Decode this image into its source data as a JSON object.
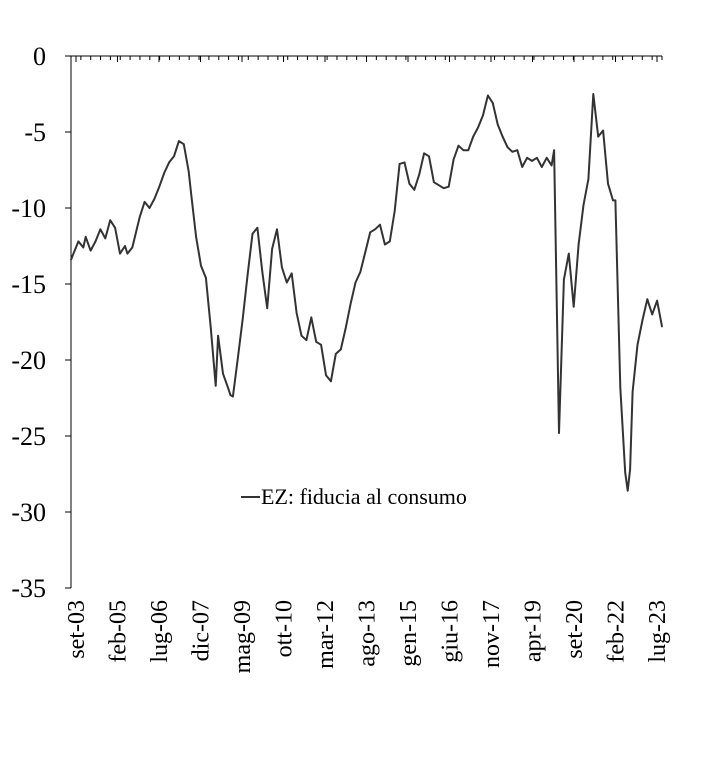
{
  "chart_data": {
    "type": "line",
    "title": "",
    "xlabel": "",
    "ylabel": "",
    "ylim": [
      -35,
      0
    ],
    "yticks": [
      0,
      -5,
      -10,
      -15,
      -20,
      -25,
      -30,
      -35
    ],
    "ytick_labels": [
      "0",
      "-5",
      "-10",
      "-15",
      "-20",
      "-25",
      "-30",
      "-35"
    ],
    "x_range": [
      "2003-09",
      "2023-10"
    ],
    "xtick_labels": [
      "set-03",
      "feb-05",
      "lug-06",
      "dic-07",
      "mag-09",
      "ott-10",
      "mar-12",
      "ago-13",
      "gen-15",
      "giu-16",
      "nov-17",
      "apr-19",
      "set-20",
      "feb-22",
      "lug-23"
    ],
    "grid": false,
    "legend_position": "center",
    "line_color": "#333333",
    "series": [
      {
        "name": "EZ: fiducia al consumo",
        "x": [
          "2003-09",
          "2003-12",
          "2004-02",
          "2004-03",
          "2004-05",
          "2004-07",
          "2004-09",
          "2004-11",
          "2005-01",
          "2005-03",
          "2005-05",
          "2005-07",
          "2005-08",
          "2005-10",
          "2006-01",
          "2006-03",
          "2006-05",
          "2006-07",
          "2006-09",
          "2006-11",
          "2007-01",
          "2007-03",
          "2007-05",
          "2007-07",
          "2007-09",
          "2007-10",
          "2007-12",
          "2008-02",
          "2008-04",
          "2008-06",
          "2008-08",
          "2008-09",
          "2008-11",
          "2009-01",
          "2009-02",
          "2009-03",
          "2009-05",
          "2009-07",
          "2009-09",
          "2009-11",
          "2010-01",
          "2010-03",
          "2010-05",
          "2010-07",
          "2010-09",
          "2010-11",
          "2011-01",
          "2011-03",
          "2011-05",
          "2011-07",
          "2011-09",
          "2011-11",
          "2012-01",
          "2012-03",
          "2012-05",
          "2012-07",
          "2012-09",
          "2012-11",
          "2013-01",
          "2013-03",
          "2013-05",
          "2013-07",
          "2013-09",
          "2013-11",
          "2014-01",
          "2014-03",
          "2014-05",
          "2014-07",
          "2014-09",
          "2014-11",
          "2015-01",
          "2015-03",
          "2015-05",
          "2015-07",
          "2015-09",
          "2015-11",
          "2016-01",
          "2016-03",
          "2016-05",
          "2016-07",
          "2016-09",
          "2016-11",
          "2017-01",
          "2017-03",
          "2017-05",
          "2017-07",
          "2017-09",
          "2017-11",
          "2018-01",
          "2018-03",
          "2018-05",
          "2018-07",
          "2018-09",
          "2018-11",
          "2019-01",
          "2019-03",
          "2019-05",
          "2019-07",
          "2019-09",
          "2019-11",
          "2020-01",
          "2020-02",
          "2020-04",
          "2020-06",
          "2020-08",
          "2020-10",
          "2020-12",
          "2021-02",
          "2021-04",
          "2021-06",
          "2021-08",
          "2021-10",
          "2021-12",
          "2022-02",
          "2022-03",
          "2022-05",
          "2022-07",
          "2022-08",
          "2022-09",
          "2022-10",
          "2022-12",
          "2023-02",
          "2023-04",
          "2023-06",
          "2023-08",
          "2023-10"
        ],
        "values": [
          -13.4,
          -12.2,
          -12.6,
          -11.9,
          -12.8,
          -12.2,
          -11.4,
          -12.0,
          -10.8,
          -11.3,
          -13.0,
          -12.5,
          -13.0,
          -12.6,
          -10.6,
          -9.6,
          -10.0,
          -9.4,
          -8.6,
          -7.7,
          -7.0,
          -6.6,
          -5.6,
          -5.8,
          -7.6,
          -9.1,
          -11.9,
          -13.8,
          -14.6,
          -17.9,
          -21.7,
          -18.4,
          -20.9,
          -21.8,
          -22.3,
          -22.4,
          -19.9,
          -17.3,
          -14.4,
          -11.7,
          -11.3,
          -14.2,
          -16.6,
          -12.7,
          -11.4,
          -13.9,
          -14.9,
          -14.3,
          -16.9,
          -18.4,
          -18.7,
          -17.2,
          -18.8,
          -19.0,
          -21.0,
          -21.4,
          -19.6,
          -19.3,
          -17.9,
          -16.3,
          -14.9,
          -14.2,
          -12.9,
          -11.6,
          -11.4,
          -11.1,
          -12.4,
          -12.2,
          -10.2,
          -7.1,
          -7.0,
          -8.4,
          -8.8,
          -7.8,
          -6.4,
          -6.6,
          -8.3,
          -8.5,
          -8.7,
          -8.6,
          -6.8,
          -5.9,
          -6.2,
          -6.2,
          -5.3,
          -4.7,
          -3.9,
          -2.6,
          -3.1,
          -4.5,
          -5.3,
          -6.0,
          -6.3,
          -6.2,
          -7.3,
          -6.7,
          -6.9,
          -6.7,
          -7.3,
          -6.7,
          -7.2,
          -6.2,
          -24.8,
          -14.7,
          -13.0,
          -16.5,
          -12.4,
          -9.8,
          -8.1,
          -2.5,
          -5.3,
          -4.9,
          -8.4,
          -9.5,
          -9.5,
          -21.8,
          -27.4,
          -28.6,
          -27.2,
          -22.1,
          -19.0,
          -17.4,
          -16.0,
          -17.0,
          -16.1,
          -17.8
        ]
      }
    ]
  }
}
